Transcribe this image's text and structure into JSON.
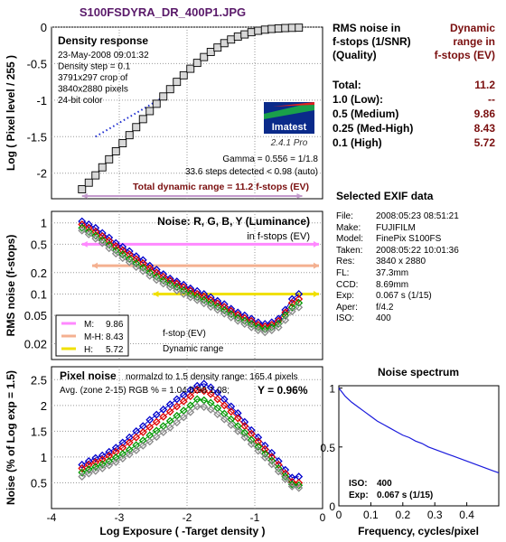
{
  "file_title": "S100FSDYRA_DR_400P1.JPG",
  "summary": {
    "left_header": [
      "RMS noise in",
      "f-stops (1/SNR)",
      "(Quality)"
    ],
    "right_header": [
      "Dynamic",
      "range in",
      "f-stops (EV)"
    ],
    "rows": [
      {
        "label": "Total:",
        "value": "11.2"
      },
      {
        "label": "1.0   (Low):",
        "value": "--"
      },
      {
        "label": "0.5   (Medium)",
        "value": "9.86"
      },
      {
        "label": "0.25 (Med-High)",
        "value": "8.43"
      },
      {
        "label": "0.1   (High)",
        "value": "5.72"
      }
    ]
  },
  "exif": {
    "title": "Selected EXIF data",
    "lines": [
      {
        "key": "File:",
        "value": "2008:05:23 08:51:21"
      },
      {
        "key": "Make:",
        "value": "FUJIFILM"
      },
      {
        "key": "Model:",
        "value": "FinePix S100FS"
      },
      {
        "key": "Taken:",
        "value": "2008:05:22 10:01:36"
      },
      {
        "key": "Res:",
        "value": "3840 x 2880"
      },
      {
        "key": "FL:",
        "value": "37.3mm"
      },
      {
        "key": "CCD:",
        "value": "8.69mm"
      },
      {
        "key": "Exp:",
        "value": "0.067 s  (1/15)"
      },
      {
        "key": "Aper:",
        "value": "f/4.2"
      },
      {
        "key": "ISO:",
        "value": "400"
      }
    ]
  },
  "colors": {
    "red": "#dd0000",
    "green": "#009900",
    "blue": "#0000cc",
    "gray": "#888888",
    "medium": "#ff88ff",
    "med_high": "#f4b090",
    "high": "#f0e000",
    "dark_red": "#7a0f0f"
  },
  "chart_data": [
    {
      "type": "line",
      "title": "Density response",
      "info_lines": [
        "23-May-2008 09:01:32",
        "Density step = 0.1",
        "3791x297 crop of",
        "3840x2880 pixels",
        "24-bit color"
      ],
      "ylabel": "Log ( Pixel level / 255 )",
      "xlim": [
        -4,
        0
      ],
      "ylim": [
        -2.35,
        0
      ],
      "yticks": [
        "0",
        "-0.5",
        "-1",
        "-1.5",
        "-2"
      ],
      "logo": {
        "text": "Imatest",
        "version": "2.4.1  Pro"
      },
      "notes": [
        "Gamma = 0.556 = 1/1.8",
        "33.6 steps detected < 0.98 (auto)"
      ],
      "total_range_label": "Total dynamic range = 11.2 f-stops (EV)",
      "total_range_x": [
        -3.55,
        -0.3
      ],
      "points_x": [
        -3.55,
        -3.45,
        -3.35,
        -3.25,
        -3.15,
        -3.05,
        -2.95,
        -2.85,
        -2.75,
        -2.65,
        -2.55,
        -2.45,
        -2.35,
        -2.25,
        -2.15,
        -2.05,
        -1.95,
        -1.85,
        -1.75,
        -1.65,
        -1.55,
        -1.45,
        -1.35,
        -1.25,
        -1.15,
        -1.05,
        -0.95,
        -0.85,
        -0.75,
        -0.65,
        -0.55,
        -0.45,
        -0.35
      ],
      "points_y": [
        -2.22,
        -2.13,
        -2.03,
        -1.92,
        -1.81,
        -1.7,
        -1.59,
        -1.48,
        -1.37,
        -1.26,
        -1.15,
        -1.05,
        -0.95,
        -0.85,
        -0.75,
        -0.66,
        -0.57,
        -0.49,
        -0.41,
        -0.34,
        -0.28,
        -0.22,
        -0.17,
        -0.13,
        -0.1,
        -0.07,
        -0.05,
        -0.035,
        -0.025,
        -0.018,
        -0.013,
        -0.01,
        -0.008
      ],
      "fit_x": [
        -3.35,
        -2.35
      ],
      "fit_y": [
        -1.5,
        -0.96
      ]
    },
    {
      "type": "line",
      "title": "Noise: R, G, B, Y (Luminance)",
      "subtitle": "in f-stops (EV)",
      "ylabel": "RMS noise (f-stops)",
      "scale": "log",
      "xlim": [
        -4,
        0
      ],
      "ylim": [
        0.012,
        1.45
      ],
      "yticks": [
        {
          "v": 1,
          "label": "1"
        },
        {
          "v": 0.5,
          "label": "0.5"
        },
        {
          "v": 0.2,
          "label": "0.2"
        },
        {
          "v": 0.1,
          "label": "0.1"
        },
        {
          "v": 0.05,
          "label": "0.05"
        },
        {
          "v": 0.02,
          "label": "0.02"
        }
      ],
      "legend": [
        {
          "label": "M:",
          "value": "9.86",
          "color_key": "medium"
        },
        {
          "label": "M-H:",
          "value": "8.43",
          "color_key": "med_high"
        },
        {
          "label": "H:",
          "value": "5.72",
          "color_key": "high"
        }
      ],
      "legend_note": [
        "f-stop (EV)",
        "Dynamic range"
      ],
      "threshold_lines": [
        {
          "level": 0.5,
          "x_start": -3.55,
          "color_key": "medium"
        },
        {
          "level": 0.25,
          "x_start": -3.4,
          "color_key": "med_high"
        },
        {
          "level": 0.1,
          "x_start": -2.5,
          "color_key": "high"
        }
      ],
      "x": [
        -3.55,
        -3.45,
        -3.35,
        -3.25,
        -3.15,
        -3.05,
        -2.95,
        -2.85,
        -2.75,
        -2.65,
        -2.55,
        -2.45,
        -2.35,
        -2.25,
        -2.15,
        -2.05,
        -1.95,
        -1.85,
        -1.75,
        -1.65,
        -1.55,
        -1.45,
        -1.35,
        -1.25,
        -1.15,
        -1.05,
        -0.95,
        -0.85,
        -0.75,
        -0.65,
        -0.55,
        -0.45,
        -0.35
      ],
      "series": [
        {
          "color_key": "blue",
          "values": [
            1.05,
            0.95,
            0.85,
            0.72,
            0.62,
            0.52,
            0.46,
            0.4,
            0.34,
            0.3,
            0.25,
            0.22,
            0.19,
            0.165,
            0.15,
            0.135,
            0.12,
            0.11,
            0.1,
            0.09,
            0.08,
            0.072,
            0.062,
            0.055,
            0.05,
            0.045,
            0.04,
            0.038,
            0.04,
            0.045,
            0.06,
            0.085,
            0.1
          ]
        },
        {
          "color_key": "red",
          "values": [
            0.95,
            0.85,
            0.75,
            0.65,
            0.56,
            0.47,
            0.41,
            0.36,
            0.31,
            0.27,
            0.23,
            0.2,
            0.175,
            0.155,
            0.14,
            0.125,
            0.112,
            0.1,
            0.092,
            0.082,
            0.074,
            0.066,
            0.058,
            0.051,
            0.046,
            0.042,
            0.037,
            0.035,
            0.037,
            0.042,
            0.055,
            0.075,
            0.085
          ]
        },
        {
          "color_key": "green",
          "values": [
            0.85,
            0.75,
            0.66,
            0.57,
            0.49,
            0.41,
            0.36,
            0.31,
            0.27,
            0.235,
            0.2,
            0.175,
            0.155,
            0.138,
            0.125,
            0.112,
            0.1,
            0.09,
            0.082,
            0.074,
            0.066,
            0.059,
            0.052,
            0.046,
            0.042,
            0.038,
            0.034,
            0.032,
            0.034,
            0.038,
            0.05,
            0.065,
            0.075
          ]
        },
        {
          "color_key": "gray",
          "values": [
            0.78,
            0.69,
            0.6,
            0.52,
            0.44,
            0.37,
            0.32,
            0.28,
            0.24,
            0.21,
            0.18,
            0.158,
            0.14,
            0.125,
            0.112,
            0.1,
            0.09,
            0.082,
            0.074,
            0.066,
            0.06,
            0.053,
            0.047,
            0.042,
            0.038,
            0.034,
            0.031,
            0.029,
            0.031,
            0.034,
            0.043,
            0.057,
            0.065
          ]
        }
      ]
    },
    {
      "type": "line",
      "title": "Pixel noise",
      "title_suffix": "normalzd to 1.5 density range: 165.4 pixels",
      "avg_line": "Avg. (zone 2-15) RGB % = 1.04  0.98  1.08;",
      "y_summary": "Y = 0.96%",
      "ylabel": "Noise (% of Log exp = 1.5)",
      "xlabel": "Log Exposure ( -Target density )",
      "xlim": [
        -4,
        0
      ],
      "ylim": [
        0,
        2.75
      ],
      "xticks": [
        {
          "v": -4,
          "label": "-4"
        },
        {
          "v": -3,
          "label": "-3"
        },
        {
          "v": -2,
          "label": "-2"
        },
        {
          "v": -1,
          "label": "-1"
        },
        {
          "v": 0,
          "label": "0"
        }
      ],
      "yticks": [
        {
          "v": 2.5,
          "label": "2.5"
        },
        {
          "v": 2,
          "label": "2"
        },
        {
          "v": 1.5,
          "label": "1.5"
        },
        {
          "v": 1,
          "label": "1"
        },
        {
          "v": 0.5,
          "label": "0.5"
        }
      ],
      "x": [
        -3.55,
        -3.45,
        -3.35,
        -3.25,
        -3.15,
        -3.05,
        -2.95,
        -2.85,
        -2.75,
        -2.65,
        -2.55,
        -2.45,
        -2.35,
        -2.25,
        -2.15,
        -2.05,
        -1.95,
        -1.85,
        -1.75,
        -1.65,
        -1.55,
        -1.45,
        -1.35,
        -1.25,
        -1.15,
        -1.05,
        -0.95,
        -0.85,
        -0.75,
        -0.65,
        -0.55,
        -0.45,
        -0.35
      ],
      "series": [
        {
          "color_key": "blue",
          "values": [
            0.85,
            0.92,
            0.98,
            1.03,
            1.1,
            1.18,
            1.28,
            1.38,
            1.5,
            1.6,
            1.72,
            1.82,
            1.92,
            2.02,
            2.12,
            2.2,
            2.3,
            2.38,
            2.42,
            2.35,
            2.25,
            2.12,
            1.98,
            1.85,
            1.68,
            1.52,
            1.38,
            1.22,
            1.08,
            0.92,
            0.75,
            0.6,
            0.62
          ]
        },
        {
          "color_key": "red",
          "values": [
            0.78,
            0.85,
            0.9,
            0.95,
            1.02,
            1.1,
            1.18,
            1.28,
            1.38,
            1.48,
            1.58,
            1.68,
            1.78,
            1.88,
            1.98,
            2.08,
            2.18,
            2.3,
            2.28,
            2.22,
            2.12,
            2.0,
            1.88,
            1.75,
            1.6,
            1.45,
            1.3,
            1.15,
            1.0,
            0.85,
            0.68,
            0.52,
            0.5
          ]
        },
        {
          "color_key": "green",
          "values": [
            0.7,
            0.76,
            0.81,
            0.86,
            0.92,
            0.99,
            1.06,
            1.14,
            1.23,
            1.32,
            1.42,
            1.51,
            1.6,
            1.7,
            1.8,
            1.9,
            2.0,
            2.12,
            2.1,
            2.05,
            1.95,
            1.84,
            1.73,
            1.6,
            1.47,
            1.33,
            1.2,
            1.06,
            0.93,
            0.78,
            0.62,
            0.47,
            0.45
          ]
        },
        {
          "color_key": "gray",
          "values": [
            0.62,
            0.68,
            0.73,
            0.78,
            0.84,
            0.9,
            0.97,
            1.05,
            1.13,
            1.22,
            1.3,
            1.39,
            1.48,
            1.57,
            1.67,
            1.77,
            1.87,
            1.98,
            1.97,
            1.92,
            1.83,
            1.73,
            1.62,
            1.5,
            1.38,
            1.25,
            1.12,
            0.99,
            0.86,
            0.72,
            0.57,
            0.43,
            0.4
          ]
        }
      ]
    },
    {
      "type": "line",
      "title": "Noise spectrum",
      "xlabel": "Frequency, cycles/pixel",
      "xlim": [
        0,
        0.5
      ],
      "ylim": [
        0,
        1.02
      ],
      "xticks": [
        {
          "v": 0,
          "label": "0"
        },
        {
          "v": 0.1,
          "label": "0.1"
        },
        {
          "v": 0.2,
          "label": "0.2"
        },
        {
          "v": 0.3,
          "label": "0.3"
        },
        {
          "v": 0.4,
          "label": "0.4"
        }
      ],
      "yticks": [
        {
          "v": 1,
          "label": "1"
        },
        {
          "v": 0.5,
          "label": "0.5"
        },
        {
          "v": 0,
          "label": "0"
        }
      ],
      "notes": [
        {
          "key": "ISO:",
          "value": "400"
        },
        {
          "key": "Exp:",
          "value": "0.067 s  (1/15)"
        }
      ],
      "x": [
        0,
        0.02,
        0.04,
        0.06,
        0.08,
        0.1,
        0.12,
        0.14,
        0.16,
        0.18,
        0.2,
        0.22,
        0.24,
        0.26,
        0.28,
        0.3,
        0.32,
        0.34,
        0.36,
        0.38,
        0.4,
        0.42,
        0.44,
        0.46,
        0.48,
        0.5
      ],
      "values": [
        1.0,
        0.93,
        0.88,
        0.84,
        0.8,
        0.76,
        0.72,
        0.69,
        0.66,
        0.63,
        0.6,
        0.58,
        0.55,
        0.53,
        0.5,
        0.48,
        0.46,
        0.44,
        0.42,
        0.4,
        0.38,
        0.36,
        0.34,
        0.32,
        0.3,
        0.28
      ]
    }
  ]
}
